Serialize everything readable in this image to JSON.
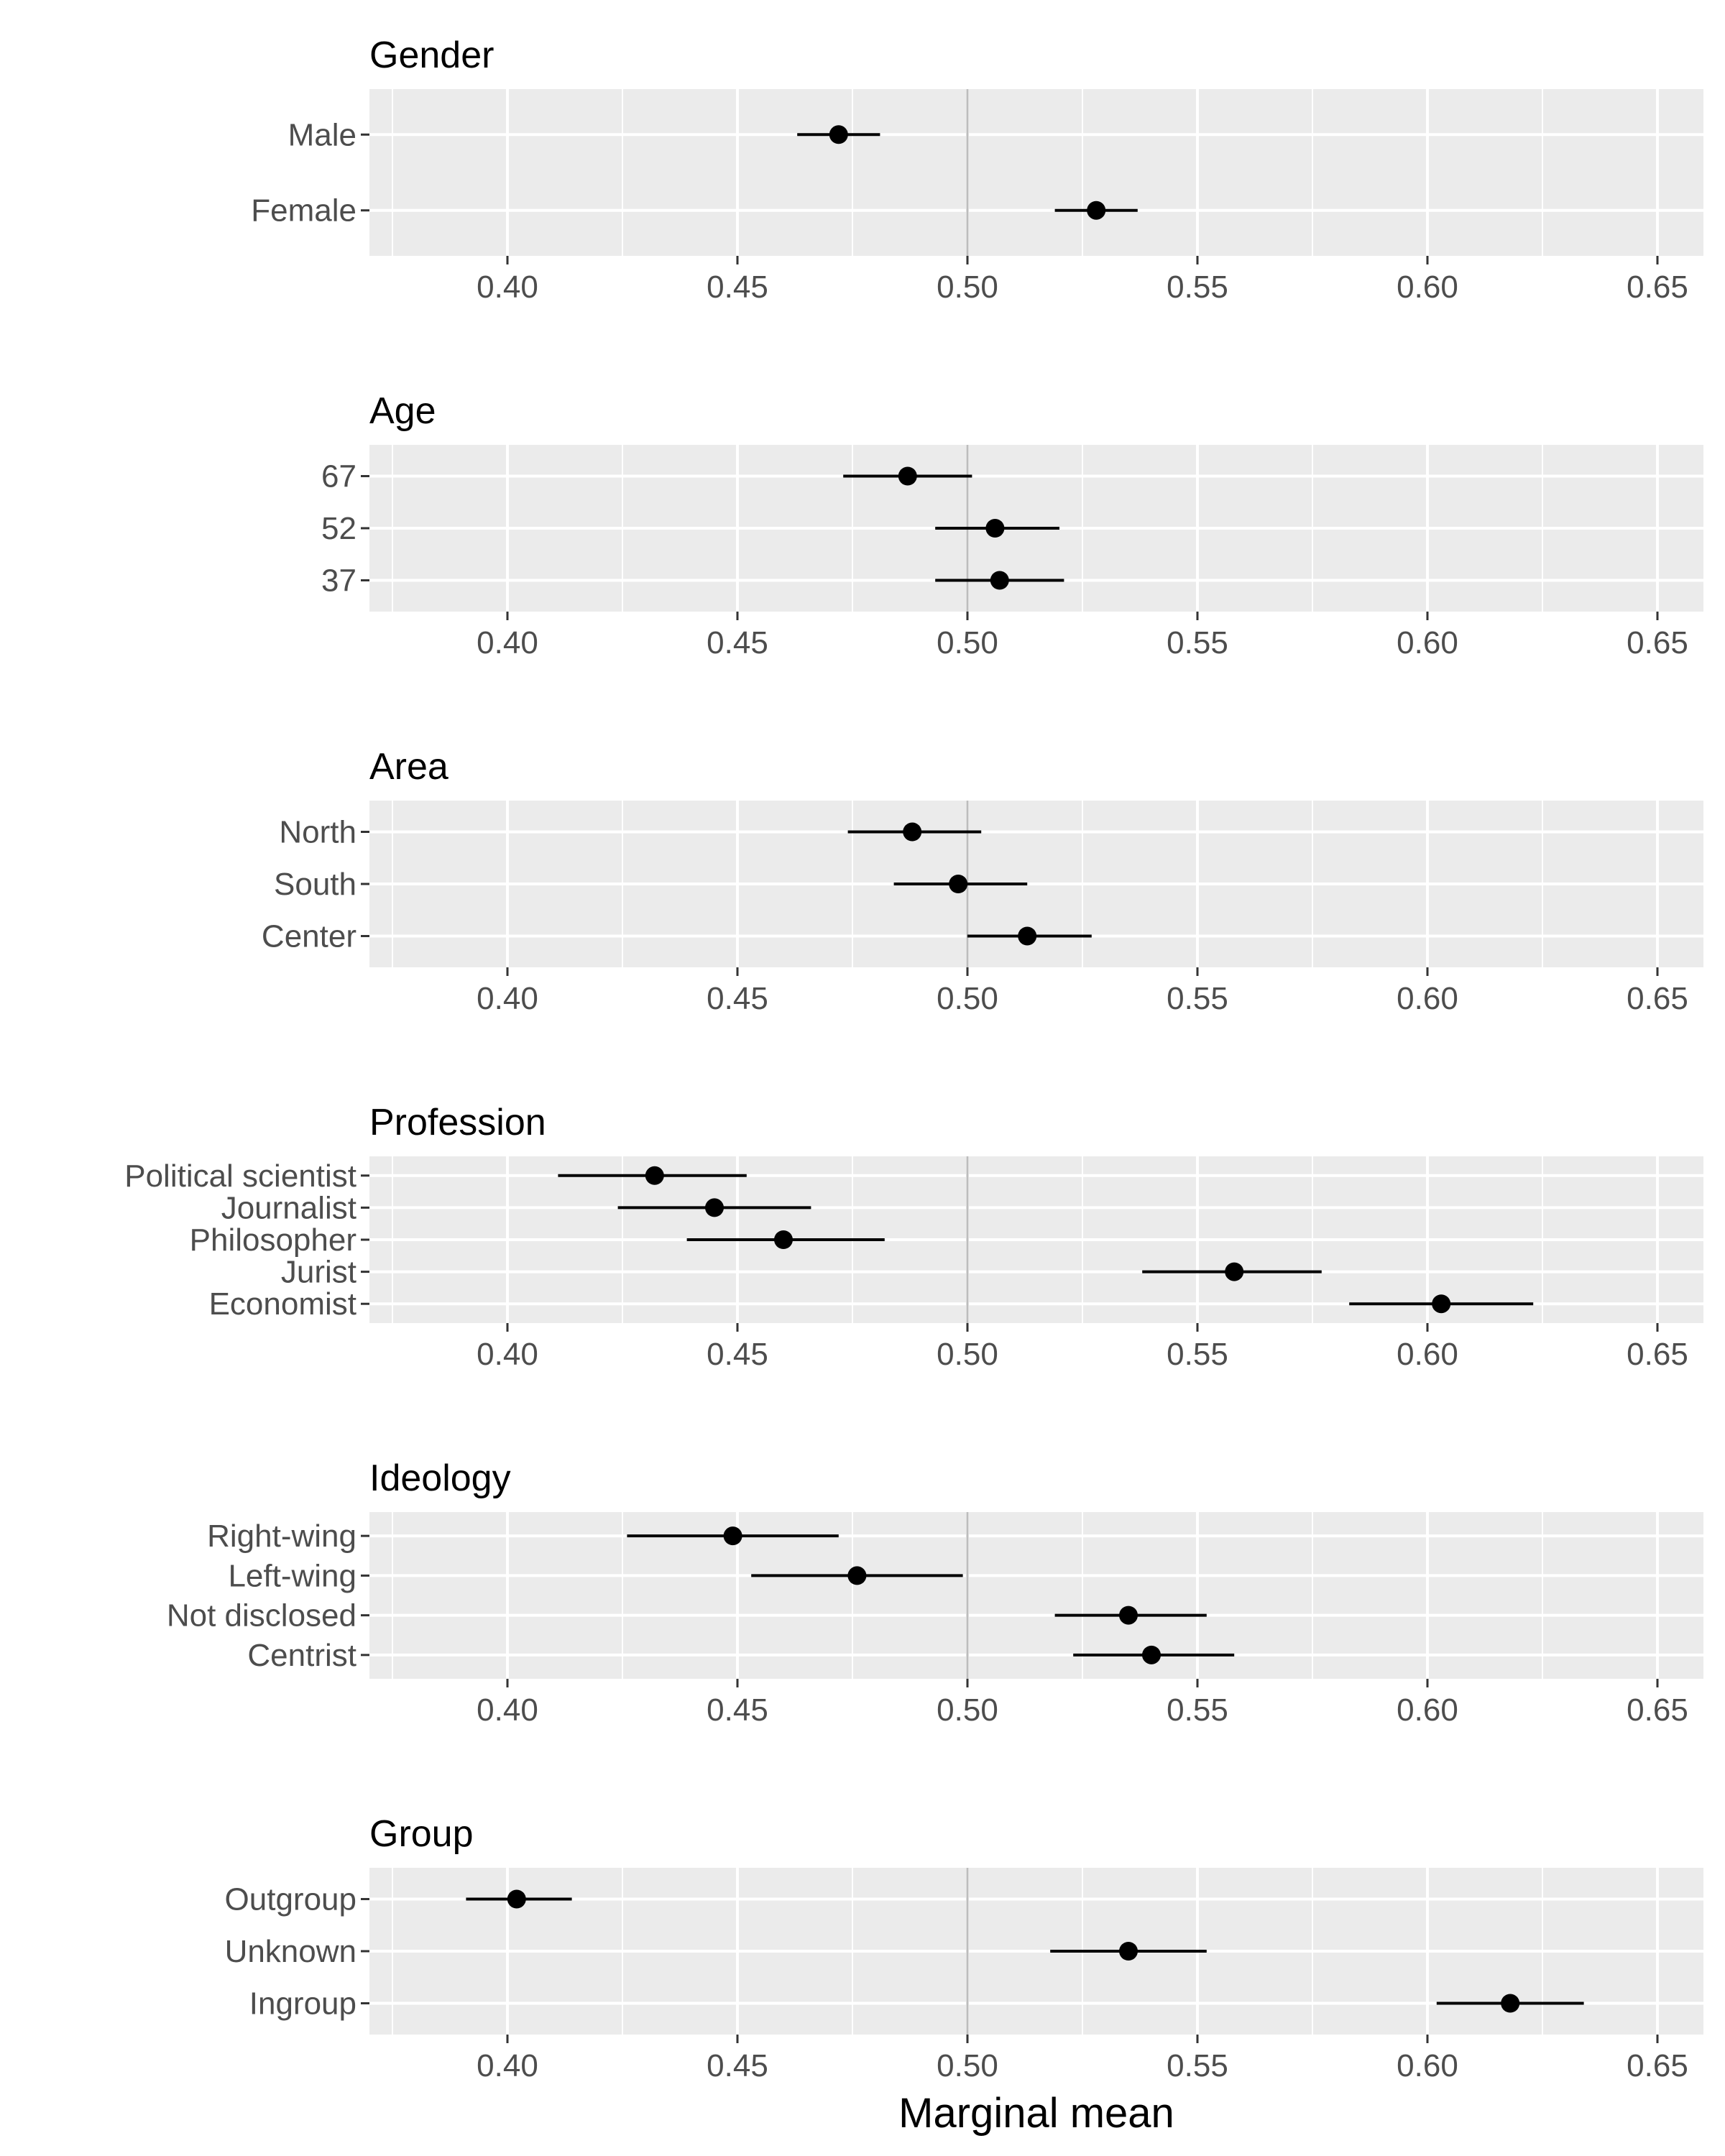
{
  "chart_data": {
    "type": "scatter",
    "subtype": "dot-and-whisker faceted",
    "xlabel": "Marginal mean",
    "xlim": [
      0.37,
      0.66
    ],
    "xticks": [
      0.4,
      0.45,
      0.5,
      0.55,
      0.6,
      0.65
    ],
    "xtick_labels": [
      "0.40",
      "0.45",
      "0.50",
      "0.55",
      "0.60",
      "0.65"
    ],
    "reference_line": 0.5,
    "grid": true,
    "colors": {
      "panel_background": "#ebebeb",
      "grid": "#ffffff",
      "reference_line": "#bdbdbd",
      "point": "#000000",
      "tick_text": "#4d4d4d"
    },
    "facets": [
      {
        "title": "Gender",
        "levels": [
          {
            "label": "Male",
            "estimate": 0.472,
            "lower": 0.463,
            "upper": 0.481
          },
          {
            "label": "Female",
            "estimate": 0.528,
            "lower": 0.519,
            "upper": 0.537
          }
        ]
      },
      {
        "title": "Age",
        "levels": [
          {
            "label": "67",
            "estimate": 0.487,
            "lower": 0.473,
            "upper": 0.501
          },
          {
            "label": "52",
            "estimate": 0.506,
            "lower": 0.493,
            "upper": 0.52
          },
          {
            "label": "37",
            "estimate": 0.507,
            "lower": 0.493,
            "upper": 0.521
          }
        ]
      },
      {
        "title": "Area",
        "levels": [
          {
            "label": "North",
            "estimate": 0.488,
            "lower": 0.474,
            "upper": 0.503
          },
          {
            "label": "South",
            "estimate": 0.498,
            "lower": 0.484,
            "upper": 0.513
          },
          {
            "label": "Center",
            "estimate": 0.513,
            "lower": 0.5,
            "upper": 0.527
          }
        ]
      },
      {
        "title": "Profession",
        "levels": [
          {
            "label": "Political scientist",
            "estimate": 0.432,
            "lower": 0.411,
            "upper": 0.452
          },
          {
            "label": "Journalist",
            "estimate": 0.445,
            "lower": 0.424,
            "upper": 0.466
          },
          {
            "label": "Philosopher",
            "estimate": 0.46,
            "lower": 0.439,
            "upper": 0.482
          },
          {
            "label": "Jurist",
            "estimate": 0.558,
            "lower": 0.538,
            "upper": 0.577
          },
          {
            "label": "Economist",
            "estimate": 0.603,
            "lower": 0.583,
            "upper": 0.623
          }
        ]
      },
      {
        "title": "Ideology",
        "levels": [
          {
            "label": "Right-wing",
            "estimate": 0.449,
            "lower": 0.426,
            "upper": 0.472
          },
          {
            "label": "Left-wing",
            "estimate": 0.476,
            "lower": 0.453,
            "upper": 0.499
          },
          {
            "label": "Not disclosed",
            "estimate": 0.535,
            "lower": 0.519,
            "upper": 0.552
          },
          {
            "label": "Centrist",
            "estimate": 0.54,
            "lower": 0.523,
            "upper": 0.558
          }
        ]
      },
      {
        "title": "Group",
        "levels": [
          {
            "label": "Outgroup",
            "estimate": 0.402,
            "lower": 0.391,
            "upper": 0.414
          },
          {
            "label": "Unknown",
            "estimate": 0.535,
            "lower": 0.518,
            "upper": 0.552
          },
          {
            "label": "Ingroup",
            "estimate": 0.618,
            "lower": 0.602,
            "upper": 0.634
          }
        ]
      }
    ]
  }
}
